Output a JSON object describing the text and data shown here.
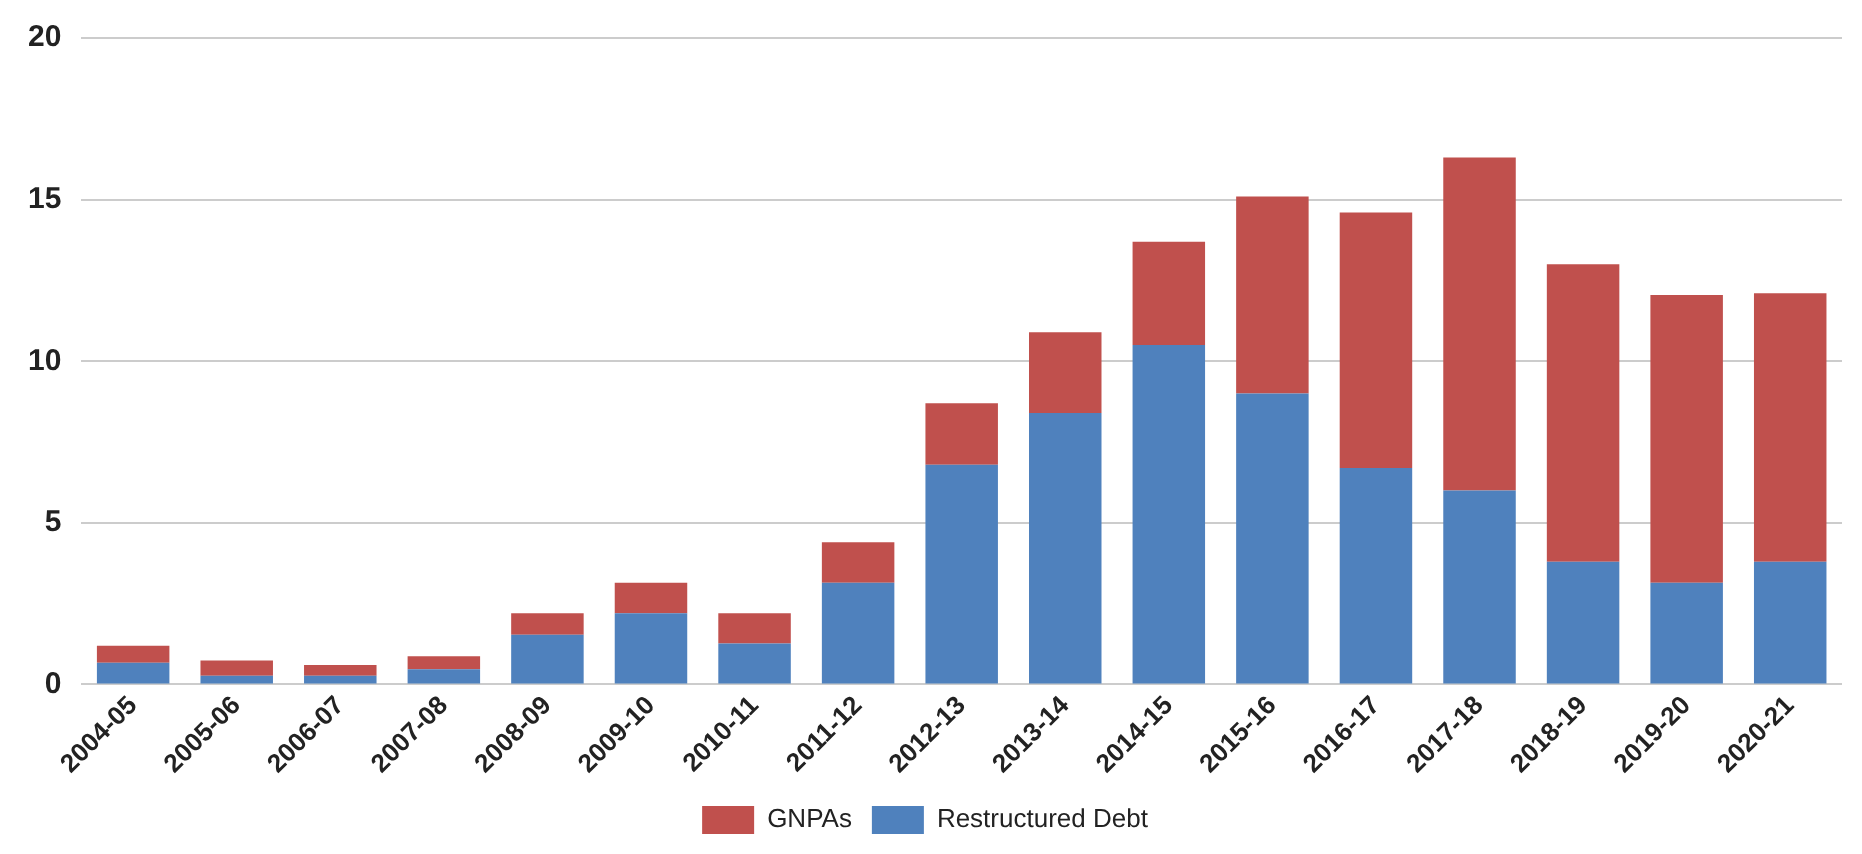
{
  "chart_data": {
    "type": "bar",
    "stacked": true,
    "categories": [
      "2004-05",
      "2005-06",
      "2006-07",
      "2007-08",
      "2008-09",
      "2009-10",
      "2010-11",
      "2011-12",
      "2012-13",
      "2013-14",
      "2014-15",
      "2015-16",
      "2016-17",
      "2017-18",
      "2018-19",
      "2019-20",
      "2020-21"
    ],
    "series": [
      {
        "name": "Restructured Debt",
        "color": "#4f81bd",
        "values": [
          0.67,
          0.27,
          0.27,
          0.47,
          1.54,
          2.2,
          1.27,
          3.15,
          6.8,
          8.4,
          10.5,
          9.0,
          6.7,
          6.0,
          3.8,
          3.15,
          3.8
        ]
      },
      {
        "name": "GNPAs",
        "color": "#c0504d",
        "values": [
          0.53,
          0.47,
          0.33,
          0.4,
          0.66,
          0.95,
          0.93,
          1.25,
          1.9,
          2.5,
          3.2,
          6.1,
          7.9,
          10.3,
          9.2,
          8.9,
          8.3
        ]
      }
    ],
    "ylim": [
      0,
      20
    ],
    "yticks": [
      0,
      5,
      10,
      15,
      20
    ],
    "grid": "y",
    "legend": "bottom"
  }
}
